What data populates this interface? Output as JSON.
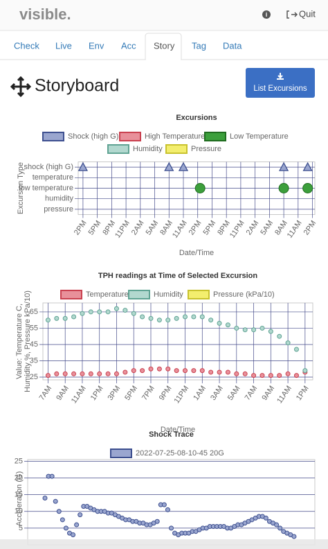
{
  "header": {
    "logo": "visible.",
    "quit": "Quit"
  },
  "tabs": [
    "Check",
    "Live",
    "Env",
    "Acc",
    "Story",
    "Tag",
    "Data"
  ],
  "active_tab": 4,
  "page_title": "Storyboard",
  "button": "List Excursions",
  "chart_data": [
    {
      "type": "scatter",
      "title": "Excursions",
      "x_label": "Date/Time",
      "y_label": "Excursion Type",
      "categories": [
        "shock (high G)",
        "temperature",
        "low temperature",
        "humidity",
        "pressure"
      ],
      "xlim": [
        -1,
        48.5
      ],
      "xticks": [
        {
          "value": 0,
          "label": "2PM"
        },
        {
          "value": 3,
          "label": "5PM"
        },
        {
          "value": 6,
          "label": "8PM"
        },
        {
          "value": 9,
          "label": "11PM"
        },
        {
          "value": 12,
          "label": "2AM"
        },
        {
          "value": 15,
          "label": "5AM"
        },
        {
          "value": 18,
          "label": "8AM"
        },
        {
          "value": 21,
          "label": "11AM"
        },
        {
          "value": 24,
          "label": "2PM"
        },
        {
          "value": 27,
          "label": "5PM"
        },
        {
          "value": 30,
          "label": "8PM"
        },
        {
          "value": 33,
          "label": "11PM"
        },
        {
          "value": 36,
          "label": "2AM"
        },
        {
          "value": 39,
          "label": "5AM"
        },
        {
          "value": 42,
          "label": "8AM"
        },
        {
          "value": 45,
          "label": "11AM"
        },
        {
          "value": 48,
          "label": "2PM"
        }
      ],
      "grid": true,
      "series": [
        {
          "name": "Shock (high G)",
          "color": "#9aa6cf",
          "border": "#3d4f8f",
          "marker": "triangle",
          "x": [
            0,
            18,
            21,
            42,
            47
          ],
          "y": [
            "shock (high G)",
            "shock (high G)",
            "shock (high G)",
            "shock (high G)",
            "shock (high G)"
          ]
        },
        {
          "name": "High Temperature",
          "color": "#e8909a",
          "border": "#c9404f",
          "marker": "circle",
          "x": [],
          "y": []
        },
        {
          "name": "Low Temperature",
          "color": "#3c9f3c",
          "border": "#1f6b1f",
          "marker": "circle",
          "x": [
            24.5,
            42,
            47
          ],
          "y": [
            "low temperature",
            "low temperature",
            "low temperature"
          ]
        },
        {
          "name": "Humidity",
          "color": "#b2d8cf",
          "border": "#5fa393",
          "marker": "circle",
          "x": [],
          "y": []
        },
        {
          "name": "Pressure",
          "color": "#f3ee6e",
          "border": "#c8c22e",
          "marker": "circle",
          "x": [],
          "y": []
        }
      ]
    },
    {
      "type": "scatter",
      "title": "TPH readings at Time of Selected Excursion",
      "x_label": "Date/Time",
      "y_label": [
        "Value: Temperature C,",
        "Humidity %, Pressure kPa/10)"
      ],
      "xlim": [
        -0.6,
        30.9
      ],
      "xticks": [
        {
          "value": 0,
          "label": "7AM"
        },
        {
          "value": 2,
          "label": "9AM"
        },
        {
          "value": 4,
          "label": "11AM"
        },
        {
          "value": 6,
          "label": "1PM"
        },
        {
          "value": 8,
          "label": "3PM"
        },
        {
          "value": 10,
          "label": "5PM"
        },
        {
          "value": 12,
          "label": "7PM"
        },
        {
          "value": 14,
          "label": "9PM"
        },
        {
          "value": 16,
          "label": "11PM"
        },
        {
          "value": 18,
          "label": "1AM"
        },
        {
          "value": 20,
          "label": "3AM"
        },
        {
          "value": 22,
          "label": "5AM"
        },
        {
          "value": 24,
          "label": "7AM"
        },
        {
          "value": 26,
          "label": "9AM"
        },
        {
          "value": 28,
          "label": "11AM"
        },
        {
          "value": 30,
          "label": "1PM"
        }
      ],
      "ylim": [
        23.3,
        70.5
      ],
      "yticks": [
        25,
        35,
        45,
        55,
        65
      ],
      "grid": true,
      "series": [
        {
          "name": "Temperature",
          "color": "#e8909a",
          "border": "#c9404f",
          "marker": "circle",
          "x": [
            0,
            1,
            2,
            3,
            4,
            5,
            6,
            7,
            8,
            9,
            10,
            11,
            12,
            13,
            14,
            15,
            16,
            17,
            18,
            19,
            20,
            21,
            22,
            23,
            24,
            25,
            26,
            27,
            28,
            29,
            30
          ],
          "values": [
            26,
            27,
            27,
            27,
            27,
            27,
            27,
            27,
            27,
            28,
            29,
            29,
            30,
            30,
            30,
            29,
            29,
            29,
            29,
            28,
            28,
            28,
            27,
            27,
            26,
            26,
            26,
            26,
            27,
            26,
            28
          ]
        },
        {
          "name": "Humidity",
          "color": "#b2d8cf",
          "border": "#5fa393",
          "marker": "circle",
          "x": [
            0,
            1,
            2,
            3,
            4,
            5,
            6,
            7,
            8,
            9,
            10,
            11,
            12,
            13,
            14,
            15,
            16,
            17,
            18,
            19,
            20,
            21,
            22,
            23,
            24,
            25,
            26,
            27,
            28,
            29,
            30
          ],
          "values": [
            60,
            61,
            61,
            62,
            64,
            65,
            65,
            65,
            67,
            66,
            64,
            62,
            61,
            60,
            60,
            61,
            62,
            62,
            62,
            60,
            58,
            57,
            55,
            54,
            54,
            55,
            53,
            50,
            46,
            42,
            29
          ]
        },
        {
          "name": "Pressure (kPa/10)",
          "color": "#f3ee6e",
          "border": "#c8c22e",
          "marker": "circle",
          "x": [],
          "values": []
        }
      ]
    },
    {
      "type": "scatter",
      "title": "Shock Trace",
      "y_label": "Acceleration (G)",
      "ylim": [
        0,
        25.5
      ],
      "yticks": [
        5,
        10,
        15,
        20,
        25
      ],
      "grid": true,
      "series": [
        {
          "name": "2022-07-25-08-10-45 20G",
          "color": "#9aa6cf",
          "border": "#3d4f8f",
          "marker": "circle",
          "values": [
            14,
            20.5,
            20.5,
            13,
            10,
            7.5,
            5,
            3.5,
            3,
            6,
            9,
            11.5,
            11.5,
            11,
            10.5,
            10,
            10,
            10,
            9.5,
            9.5,
            9,
            8.5,
            8,
            7.5,
            7.5,
            7,
            7,
            6.5,
            6.5,
            6,
            6,
            6.5,
            7,
            12,
            12,
            10.5,
            5,
            3.5,
            3,
            3.5,
            3.5,
            3.5,
            4,
            4,
            4.5,
            5,
            5,
            5.5,
            5.5,
            5.5,
            5.5,
            5.5,
            5,
            5,
            5.5,
            6,
            6,
            6.5,
            7,
            7.5,
            8,
            8.5,
            8.5,
            8,
            7,
            6.5,
            6,
            5,
            4,
            3.5,
            3,
            2.5
          ]
        }
      ]
    }
  ]
}
